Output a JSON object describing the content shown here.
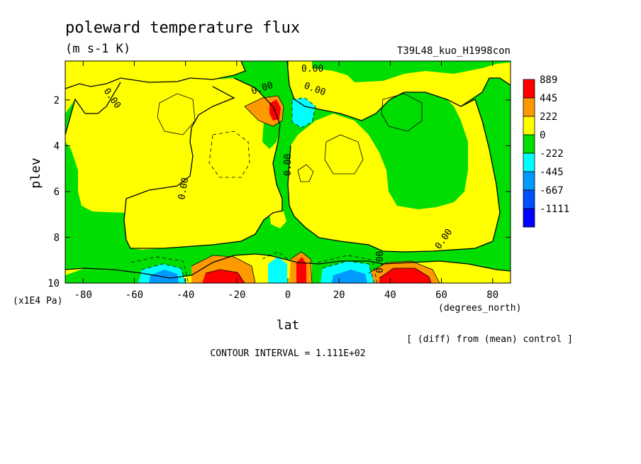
{
  "chart_data": {
    "type": "heatmap",
    "title": "poleward temperature flux",
    "units": "(m s-1 K)",
    "run_label": "T39L48_kuo_H1998con",
    "xlabel": "lat",
    "x_units": "(degrees_north)",
    "ylabel": "plev",
    "y_units": "(x1E4 Pa)",
    "x_ticks": [
      "-80",
      "-60",
      "-40",
      "-20",
      "0",
      "20",
      "40",
      "60",
      "80"
    ],
    "y_ticks": [
      "2",
      "4",
      "6",
      "8",
      "10"
    ],
    "xlim": [
      -87,
      87
    ],
    "ylim": [
      0.3,
      10
    ],
    "y_inverted": true,
    "colorbar": {
      "labels": [
        "889",
        "445",
        "222",
        "0",
        "-222",
        "-445",
        "-667",
        "-1111"
      ],
      "colors": [
        "#ff0000",
        "#ff9900",
        "#ffff00",
        "#00dd00",
        "#00ffff",
        "#0099ff",
        "#0050ff",
        "#0000ff"
      ]
    },
    "contour_labels": [
      "0.00",
      "0.00",
      "0.00",
      "0.00",
      "0.00",
      "0.00",
      "0.00",
      "0.00"
    ],
    "footnote": "[ (diff) from (mean) control ]",
    "contour_interval": "CONTOUR INTERVAL = 1.111E+02",
    "grid": false
  }
}
